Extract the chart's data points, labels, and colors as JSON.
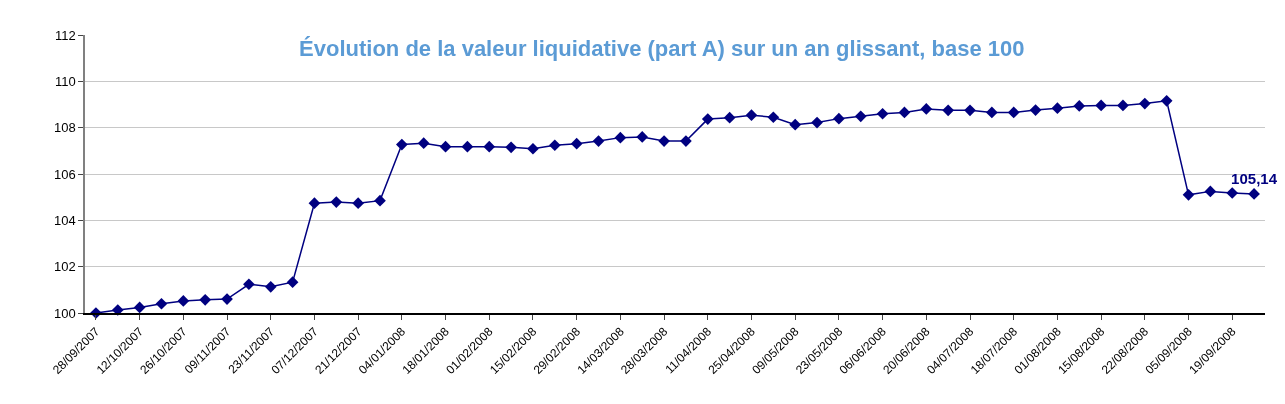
{
  "chart_data": {
    "type": "line",
    "title": "Évolution de la valeur liquidative (part A) sur un an glissant, base 100",
    "categories": [
      "28/09/2007",
      null,
      "12/10/2007",
      null,
      "26/10/2007",
      null,
      "09/11/2007",
      null,
      "23/11/2007",
      null,
      "07/12/2007",
      null,
      "21/12/2007",
      null,
      "04/01/2008",
      null,
      "18/01/2008",
      null,
      "01/02/2008",
      null,
      "15/02/2008",
      null,
      "29/02/2008",
      null,
      "14/03/2008",
      null,
      "28/03/2008",
      null,
      "11/04/2008",
      null,
      "25/04/2008",
      null,
      "09/05/2008",
      null,
      "23/05/2008",
      null,
      "06/06/2008",
      null,
      "20/06/2008",
      null,
      "04/07/2008",
      null,
      "18/07/2008",
      null,
      "01/08/2008",
      null,
      "15/08/2008",
      null,
      "22/08/2008",
      null,
      "05/09/2008",
      null,
      "19/09/2008",
      null
    ],
    "series": [
      {
        "color": "#000080",
        "values": [
          100,
          100.13,
          100.24,
          100.4,
          100.52,
          100.57,
          100.6,
          101.24,
          101.13,
          101.33,
          104.74,
          104.79,
          104.74,
          104.85,
          107.27,
          107.33,
          107.18,
          107.18,
          107.18,
          107.15,
          107.09,
          107.24,
          107.31,
          107.42,
          107.57,
          107.6,
          107.42,
          107.42,
          108.37,
          108.43,
          108.54,
          108.45,
          108.13,
          108.22,
          108.39,
          108.49,
          108.6,
          108.66,
          108.81,
          108.75,
          108.75,
          108.66,
          108.66,
          108.76,
          108.84,
          108.94,
          108.96,
          108.96,
          109.04,
          109.16,
          105.1,
          105.25,
          105.18,
          105.14
        ],
        "value_labels": [
          null,
          null,
          null,
          null,
          null,
          null,
          null,
          null,
          null,
          null,
          null,
          null,
          null,
          null,
          null,
          null,
          null,
          null,
          null,
          null,
          null,
          null,
          null,
          null,
          null,
          null,
          null,
          null,
          null,
          null,
          null,
          null,
          null,
          null,
          null,
          null,
          null,
          null,
          null,
          null,
          null,
          null,
          null,
          null,
          null,
          null,
          null,
          null,
          null,
          null,
          null,
          null,
          null,
          "105,14"
        ]
      }
    ],
    "ylim": [
      100,
      112
    ],
    "yticks": [
      100,
      102,
      104,
      106,
      108,
      110,
      112
    ],
    "grid": "y",
    "marker": "diamond",
    "line_style": "solid",
    "legend": false
  }
}
